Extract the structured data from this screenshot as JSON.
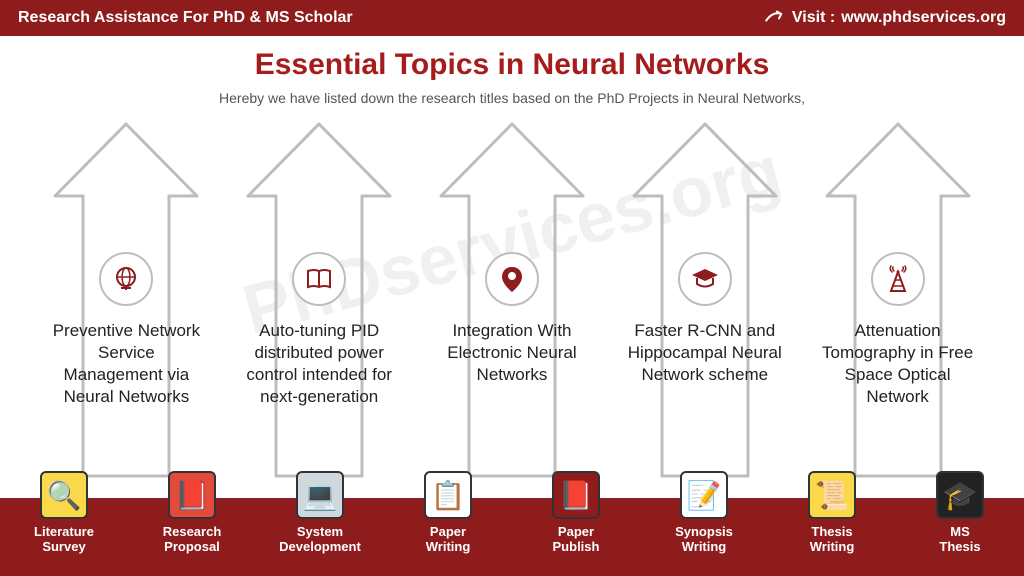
{
  "header": {
    "left": "Research Assistance For PhD & MS Scholar",
    "visit_label": "Visit : ",
    "visit_url": "www.phdservices.org"
  },
  "title": "Essential Topics in Neural Networks",
  "subtitle": "Hereby we have listed down the research titles based on the PhD Projects in Neural Networks,",
  "watermark": "PhDservices.org",
  "colors": {
    "brand": "#8e1c1c",
    "title": "#a61c1c",
    "arrow_stroke": "#bdbdbd",
    "text": "#222222",
    "subtitle": "#555555",
    "bg": "#ffffff"
  },
  "topics": [
    {
      "icon": "globe",
      "text": "Preventive Network Service Management via Neural Networks"
    },
    {
      "icon": "book",
      "text": "Auto-tuning PID distributed power control intended for next-generation"
    },
    {
      "icon": "pin",
      "text": "Integration With Electronic Neural Networks"
    },
    {
      "icon": "cap",
      "text": "Faster R-CNN and Hippocampal Neural Network scheme"
    },
    {
      "icon": "tower",
      "text": "Attenuation Tomography in Free Space Optical Network"
    }
  ],
  "footer": [
    {
      "icon": "🔍",
      "bg": "#f9d94a",
      "label": "Literature Survey"
    },
    {
      "icon": "📕",
      "bg": "#e24a3b",
      "label": "Research Proposal"
    },
    {
      "icon": "💻",
      "bg": "#cfd8dc",
      "label": "System Development"
    },
    {
      "icon": "📋",
      "bg": "#ffffff",
      "label": "Paper Writing"
    },
    {
      "icon": "📕",
      "bg": "#8e1c1c",
      "label": "Paper Publish"
    },
    {
      "icon": "📝",
      "bg": "#ffffff",
      "label": "Synopsis Writing"
    },
    {
      "icon": "📜",
      "bg": "#f9d94a",
      "label": "Thesis Writing"
    },
    {
      "icon": "🎓",
      "bg": "#222222",
      "label": "MS Thesis"
    }
  ]
}
